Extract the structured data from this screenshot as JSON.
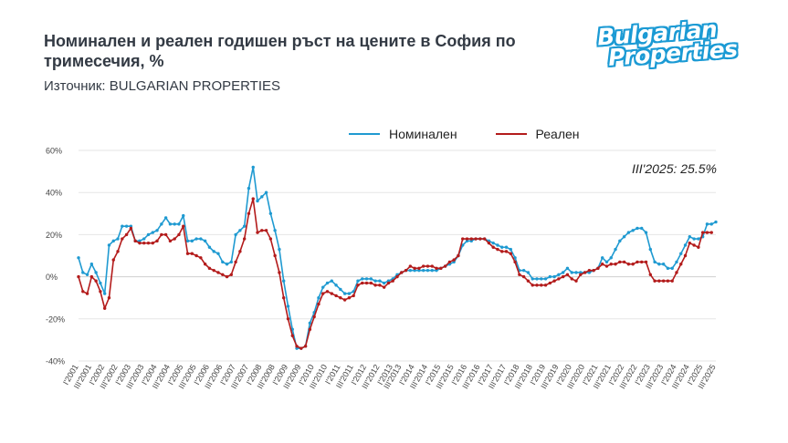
{
  "header": {
    "title": "Номинален и реален годишен ръст на цените в София по тримесечия, %",
    "source": "Източник: BULGARIAN PROPERTIES"
  },
  "logo": {
    "line1": "Bulgarian",
    "line2": "Properties",
    "color": "#1b9ad4"
  },
  "annotation": "III'2025: 25.5%",
  "chart_data": {
    "type": "line",
    "title": "Номинален и реален годишен ръст на цените в София по тримесечия, %",
    "ylim": [
      -40,
      60
    ],
    "yticks": [
      -40,
      -20,
      0,
      20,
      40,
      60
    ],
    "ytick_labels": [
      "-40%",
      "-20%",
      "0%",
      "20%",
      "40%",
      "60%"
    ],
    "x_tick_labels": [
      "I'2001",
      "III'2001",
      "I'2002",
      "III'2002",
      "I'2003",
      "III'2003",
      "I'2004",
      "III'2004",
      "I'2005",
      "III'2005",
      "I'2006",
      "III'2006",
      "I'2007",
      "III'2007",
      "I'2008",
      "III'2008",
      "I'2009",
      "III'2009",
      "I'2010",
      "III'2010",
      "I'2011",
      "III'2011",
      "I'2012",
      "III'2012",
      "I'2013",
      "III'2013",
      "I'2014",
      "III'2014",
      "I'2015",
      "III'2015",
      "I'2016",
      "III'2016",
      "I'2017",
      "III'2017",
      "I'2018",
      "III'2018",
      "I'2019",
      "III'2019",
      "I'2020",
      "III'2020",
      "I'2021",
      "III'2021",
      "I'2022",
      "III'2022",
      "I'2023",
      "III'2023",
      "I'2024",
      "III'2024",
      "I'2025",
      "III'2025"
    ],
    "grid": true,
    "legend_position": "top",
    "series": [
      {
        "name": "Номинален",
        "color": "#1f9ad1",
        "values": [
          9,
          2,
          1,
          6,
          2,
          -3,
          -8,
          15,
          17,
          18,
          24,
          24,
          24,
          17,
          17,
          18,
          20,
          21,
          22,
          25,
          28,
          25,
          25,
          25,
          29,
          17,
          17,
          18,
          18,
          17,
          14,
          12,
          11,
          7,
          6,
          7,
          20,
          22,
          24,
          42,
          52,
          36,
          38,
          40,
          30,
          22,
          13,
          -2,
          -14,
          -25,
          -34,
          -34,
          -33,
          -22,
          -17,
          -10,
          -5,
          -3,
          -2,
          -4,
          -6,
          -8,
          -8,
          -7,
          -2,
          -1,
          -1,
          -1,
          -2,
          -2,
          -3,
          -2,
          -1,
          1,
          2,
          3,
          3,
          3,
          3,
          3,
          3,
          3,
          3,
          4,
          5,
          6,
          7,
          10,
          15,
          17,
          17,
          18,
          18,
          18,
          17,
          16,
          15,
          14,
          14,
          13,
          9,
          3,
          3,
          2,
          -1,
          -1,
          -1,
          -1,
          0,
          0,
          1,
          2,
          4,
          2,
          2,
          2,
          2,
          2,
          3,
          4,
          9,
          7,
          9,
          13,
          17,
          19,
          21,
          22,
          23,
          23,
          21,
          13,
          7,
          6,
          6,
          4,
          4,
          7,
          11,
          15,
          19,
          18,
          18,
          19,
          25,
          25,
          26
        ]
      },
      {
        "name": "Реален",
        "color": "#b31b1b",
        "values": [
          0,
          -7,
          -8,
          0,
          -2,
          -7,
          -15,
          -10,
          8,
          12,
          18,
          20,
          23,
          17,
          16,
          16,
          16,
          16,
          17,
          20,
          20,
          17,
          18,
          20,
          24,
          11,
          11,
          10,
          9,
          6,
          4,
          3,
          2,
          1,
          0,
          1,
          7,
          12,
          18,
          30,
          37,
          21,
          22,
          22,
          18,
          10,
          2,
          -10,
          -20,
          -28,
          -33,
          -34,
          -33,
          -25,
          -19,
          -13,
          -8,
          -7,
          -8,
          -9,
          -10,
          -11,
          -10,
          -9,
          -4,
          -3,
          -3,
          -3,
          -4,
          -4,
          -5,
          -3,
          -2,
          0,
          2,
          3,
          5,
          4,
          4,
          5,
          5,
          5,
          4,
          4,
          5,
          7,
          8,
          10,
          18,
          18,
          18,
          18,
          18,
          18,
          16,
          14,
          13,
          12,
          12,
          11,
          7,
          1,
          0,
          -2,
          -4,
          -4,
          -4,
          -4,
          -3,
          -2,
          -1,
          0,
          1,
          -1,
          -2,
          1,
          2,
          3,
          3,
          4,
          6,
          5,
          6,
          6,
          7,
          7,
          6,
          6,
          7,
          7,
          7,
          1,
          -2,
          -2,
          -2,
          -2,
          -2,
          2,
          6,
          10,
          16,
          15,
          14,
          21,
          21,
          21
        ]
      }
    ]
  }
}
